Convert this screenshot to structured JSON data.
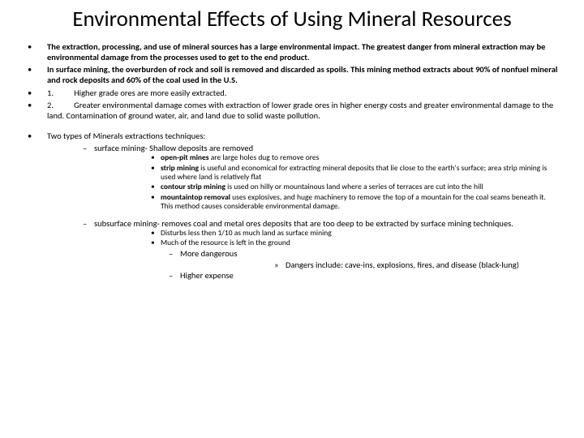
{
  "title": "Environmental Effects of Using Mineral Resources",
  "top_bullets": [
    {
      "bold": true,
      "text": "The extraction, processing, and use of mineral sources has a large environmental impact. The greatest danger from mineral extraction may be environmental damage from the processes used to get to the end product."
    },
    {
      "bold": true,
      "text": "In surface mining, the overburden of rock and soil is removed and discarded as spoils. This mining method extracts about 90% of nonfuel mineral and rock deposits and 60% of the coal used in the U.S."
    },
    {
      "num": "1.",
      "text": "Higher grade ores are more easily extracted."
    },
    {
      "num": "2.",
      "text": "Greater environmental damage comes with extraction of lower grade ores in higher energy costs and greater environmental damage to the land. Contamination of ground water, air, and land due to solid waste pollution."
    }
  ],
  "two_types_intro": "Two types of Minerals extractions techniques:",
  "surface": {
    "label": "surface mining- Shallow deposits are removed",
    "items": [
      {
        "bold_prefix": "open-pit mines",
        "rest": " are large holes dug to remove ores"
      },
      {
        "bold_prefix": "strip mining",
        "rest": " is useful and economical for extracting mineral deposits that lie close to the earth's surface; area strip mining is used where land is relatively flat"
      },
      {
        "bold_prefix": "contour strip mining",
        "rest": " is used on hilly or mountainous land where a series of terraces are cut into the hill"
      },
      {
        "bold_prefix": "mountaintop removal",
        "rest": " uses explosives, and huge machinery to remove the top of a mountain for the coal seams beneath it. This method causes considerable environmental damage."
      }
    ]
  },
  "subsurface": {
    "label": "subsurface mining- removes coal and metal ores deposits that are too deep to be extracted by surface mining techniques.",
    "items": [
      "Disturbs less then 1/10 as much land as surface mining",
      "Much of the resource is left in the ground"
    ],
    "sub_dash": [
      {
        "text": "More dangerous",
        "raquo": "Dangers include: cave-ins, explosions, fires, and disease (black-lung)"
      },
      {
        "text": "Higher expense"
      }
    ]
  }
}
